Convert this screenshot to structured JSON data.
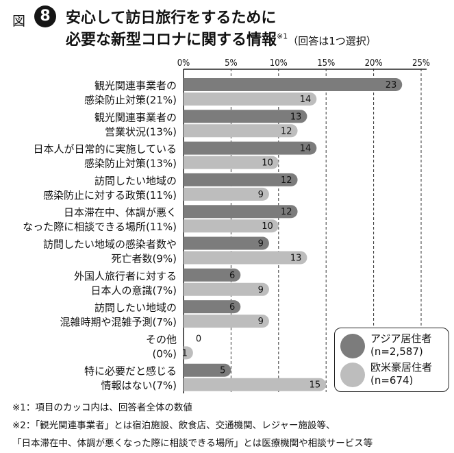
{
  "header": {
    "fig_label": "図",
    "fig_number": "8",
    "title_line1": "安心して訪日旅行をするために",
    "title_line2": "必要な新型コロナに関する情報",
    "title_superscript": "※1",
    "title_note": "（回答は1つ選択）"
  },
  "legend": {
    "items": [
      {
        "name": "アジア居住者",
        "n": "(n=2,587)"
      },
      {
        "name": "欧米豪居住者",
        "n": "(n=674)"
      }
    ]
  },
  "notes": [
    "※1：項目のカッコ内は、回答者全体の数値",
    "※2：「観光関連事業者」とは宿泊施設、飲食店、交通機関、レジャー施設等、",
    "「日本滞在中、体調が悪くなった際に相談できる場所」とは医療機関や相談サービス等"
  ],
  "colors": {
    "asia": "#7c7c7c",
    "west": "#bdbdbd",
    "axis": "#222222",
    "grid": "#333333"
  },
  "chart_data": {
    "type": "bar",
    "orientation": "horizontal",
    "title": "安心して訪日旅行をするために必要な新型コロナに関する情報",
    "xlim": [
      0,
      25
    ],
    "x_ticks": [
      "0%",
      "5%",
      "10%",
      "15%",
      "20%",
      "25%"
    ],
    "x_tick_values": [
      0,
      5,
      10,
      15,
      20,
      25
    ],
    "grid": "vertical-dashed",
    "legend_position": "bottom-right",
    "categories": [
      [
        "観光関連事業者の",
        "感染防止対策(21%)"
      ],
      [
        "観光関連事業者の",
        "営業状況(13%)"
      ],
      [
        "日本人が日常的に実施している",
        "感染防止対策(13%)"
      ],
      [
        "訪問したい地域の",
        "感染防止に対する政策(11%)"
      ],
      [
        "日本滞在中、体調が悪く",
        "なった際に相談できる場所(11%)"
      ],
      [
        "訪問したい地域の感染者数や",
        "死亡者数(9%)"
      ],
      [
        "外国人旅行者に対する",
        "日本人の意識(7%)"
      ],
      [
        "訪問したい地域の",
        "混雑時期や混雑予測(7%)"
      ],
      [
        "その他",
        "(0%)"
      ],
      [
        "特に必要だと感じる",
        "情報はない(7%)"
      ]
    ],
    "series": [
      {
        "name": "アジア居住者",
        "values": [
          23,
          13,
          14,
          12,
          12,
          9,
          6,
          6,
          0,
          5
        ]
      },
      {
        "name": "欧米豪居住者",
        "values": [
          14,
          12,
          10,
          9,
          10,
          13,
          9,
          9,
          1,
          15
        ]
      }
    ]
  }
}
